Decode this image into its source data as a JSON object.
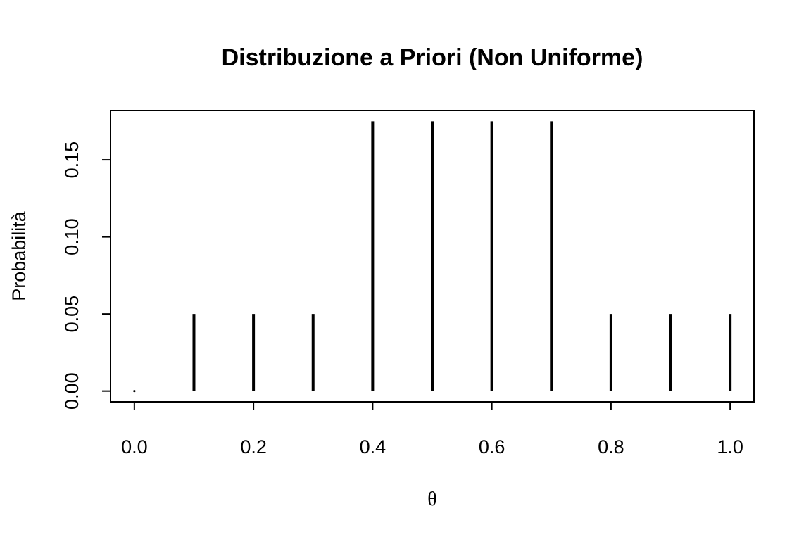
{
  "chart_data": {
    "type": "bar",
    "title": "Distribuzione a Priori (Non Uniforme)",
    "xlabel": "θ",
    "ylabel": "Probabilità",
    "x": [
      0.0,
      0.1,
      0.2,
      0.3,
      0.4,
      0.5,
      0.6,
      0.7,
      0.8,
      0.9,
      1.0
    ],
    "values": [
      0.0,
      0.05,
      0.05,
      0.05,
      0.175,
      0.175,
      0.175,
      0.175,
      0.05,
      0.05,
      0.05
    ],
    "xlim": [
      -0.04,
      1.04
    ],
    "ylim": [
      -0.007,
      0.182
    ],
    "xticks": [
      0.0,
      0.2,
      0.4,
      0.6,
      0.8,
      1.0
    ],
    "xtick_labels": [
      "0.0",
      "0.2",
      "0.4",
      "0.6",
      "0.8",
      "1.0"
    ],
    "yticks": [
      0.0,
      0.05,
      0.1,
      0.15
    ],
    "ytick_labels": [
      "0.00",
      "0.05",
      "0.10",
      "0.15"
    ],
    "grid": false,
    "legend": "none",
    "bar_color": "#000000"
  }
}
